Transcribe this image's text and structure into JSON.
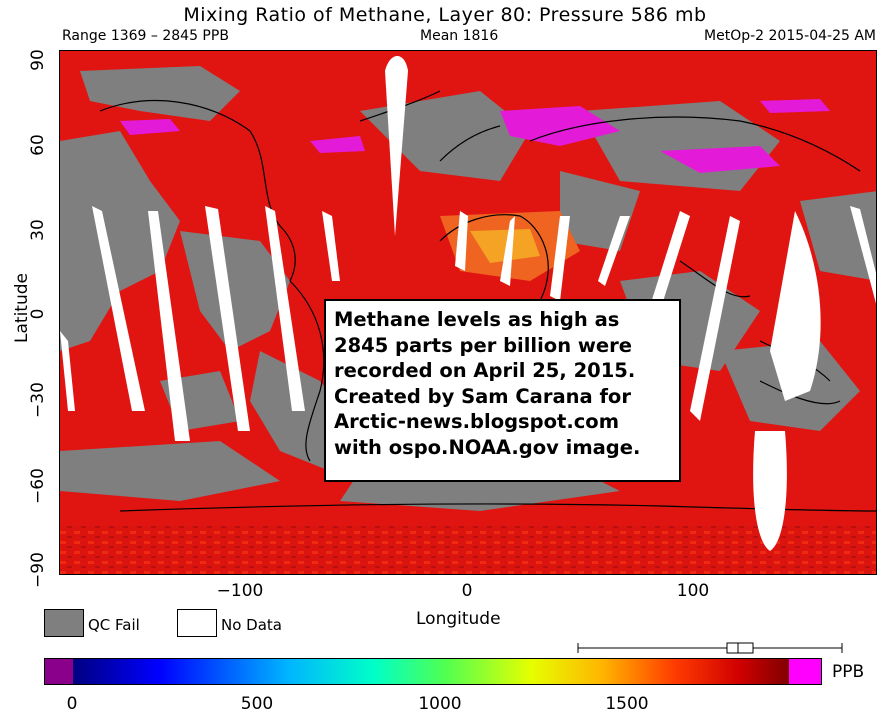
{
  "title": "Mixing Ratio of Methane, Layer 80: Pressure 586 mb",
  "header": {
    "range": "Range 1369 – 2845 PPB",
    "mean": "Mean 1816",
    "source_date": "MetOp-2 2015-04-25 AM"
  },
  "map": {
    "y_axis_label": "Latitude",
    "x_axis_label": "Longitude",
    "y_ticks": [
      "90",
      "60",
      "30",
      "0",
      "−30",
      "−60",
      "−90"
    ],
    "x_ticks": [
      "−100",
      "0",
      "100"
    ],
    "lat_range": [
      -90,
      90
    ],
    "lon_range": [
      -180,
      180
    ],
    "colors": {
      "qc_fail": "#7f7f7f",
      "methane_high": "#e0120e",
      "methane_peak": "#e31bd9",
      "no_data": "#ffffff"
    }
  },
  "annotation": "Methane levels as high as\n2845 parts per billion were\nrecorded on April 25, 2015.\nCreated by Sam Carana for\nArctic-news.blogspot.com\nwith ospo.NOAA.gov image.",
  "legend": {
    "qc_fail_label": "QC Fail",
    "no_data_label": "No Data"
  },
  "colorbar": {
    "unit": "PPB",
    "ticks": [
      "0",
      "500",
      "1000",
      "1500"
    ],
    "under_color": "#8a008a",
    "over_color": "#ff00ff",
    "value_range": [
      0,
      2000
    ]
  }
}
